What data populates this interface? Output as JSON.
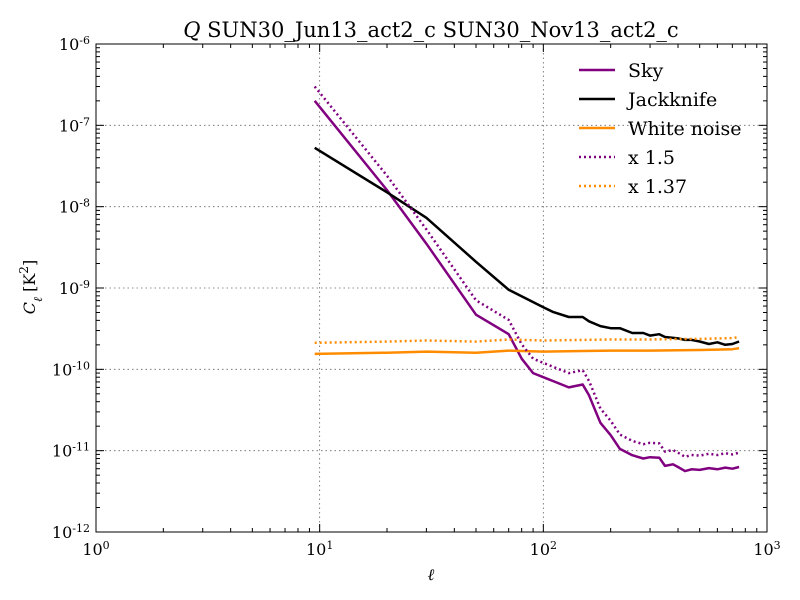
{
  "chart_data": {
    "type": "line",
    "title": "Q SUN30_Jun13_act2_c SUN30_Nov13_act2_c",
    "title_italic_prefix": "Q",
    "title_rest": " SUN30_Jun13_act2_c SUN30_Nov13_act2_c",
    "xlabel": "ℓ",
    "ylabel": "Cℓ [K²]",
    "xscale": "log",
    "yscale": "log",
    "xlim": [
      1,
      1000
    ],
    "ylim": [
      1e-12,
      1e-06
    ],
    "grid": true,
    "legend_position": "top-right",
    "x_ticks": [
      {
        "value": 1,
        "base": "10",
        "exp": "0"
      },
      {
        "value": 10,
        "base": "10",
        "exp": "1"
      },
      {
        "value": 100,
        "base": "10",
        "exp": "2"
      },
      {
        "value": 1000,
        "base": "10",
        "exp": "3"
      }
    ],
    "y_ticks": [
      {
        "value": 1e-12,
        "base": "10",
        "exp": "-12"
      },
      {
        "value": 1e-11,
        "base": "10",
        "exp": "-11"
      },
      {
        "value": 1e-10,
        "base": "10",
        "exp": "-10"
      },
      {
        "value": 1e-09,
        "base": "10",
        "exp": "-9"
      },
      {
        "value": 1e-08,
        "base": "10",
        "exp": "-8"
      },
      {
        "value": 1e-07,
        "base": "10",
        "exp": "-7"
      },
      {
        "value": 1e-06,
        "base": "10",
        "exp": "-6"
      }
    ],
    "series": [
      {
        "name": "Sky",
        "color": "#800080",
        "dash": "solid",
        "x": [
          9.5,
          20,
          30,
          50,
          70,
          80,
          90,
          100,
          110,
          130,
          150,
          160,
          180,
          200,
          220,
          250,
          280,
          300,
          330,
          350,
          380,
          400,
          430,
          460,
          500,
          550,
          600,
          650,
          700,
          750
        ],
        "y": [
          2e-07,
          1.6e-08,
          3.5e-09,
          4.7e-10,
          2.7e-10,
          1.35e-10,
          9e-11,
          8e-11,
          7.2e-11,
          6e-11,
          6.5e-11,
          4.8e-11,
          2.2e-11,
          1.55e-11,
          1.05e-11,
          8.8e-12,
          8e-12,
          8.3e-12,
          8.2e-12,
          6.5e-12,
          6.8e-12,
          6.3e-12,
          5.6e-12,
          5.9e-12,
          5.8e-12,
          6.1e-12,
          5.9e-12,
          6.2e-12,
          6e-12,
          6.3e-12
        ]
      },
      {
        "name": "Jackknife",
        "color": "#000000",
        "dash": "solid",
        "x": [
          9.5,
          20,
          30,
          50,
          70,
          100,
          110,
          130,
          150,
          160,
          180,
          200,
          220,
          250,
          280,
          300,
          330,
          350,
          400,
          430,
          460,
          500,
          550,
          600,
          650,
          700,
          750
        ],
        "y": [
          5.3e-08,
          1.5e-08,
          7.3e-09,
          2.1e-09,
          9.5e-10,
          5.8e-10,
          5.1e-10,
          4.4e-10,
          4.4e-10,
          3.9e-10,
          3.4e-10,
          3.2e-10,
          3.2e-10,
          2.8e-10,
          2.8e-10,
          2.6e-10,
          2.7e-10,
          2.5e-10,
          2.4e-10,
          2.3e-10,
          2.3e-10,
          2.2e-10,
          2.05e-10,
          2.15e-10,
          2e-10,
          2.05e-10,
          2.2e-10
        ]
      },
      {
        "name": "White noise",
        "color": "#ff8c00",
        "dash": "solid",
        "x": [
          9.5,
          20,
          30,
          50,
          70,
          100,
          150,
          200,
          300,
          400,
          500,
          600,
          700,
          750
        ],
        "y": [
          1.55e-10,
          1.6e-10,
          1.65e-10,
          1.6e-10,
          1.7e-10,
          1.65e-10,
          1.68e-10,
          1.7e-10,
          1.7e-10,
          1.72e-10,
          1.73e-10,
          1.75e-10,
          1.77e-10,
          1.82e-10
        ]
      },
      {
        "name": "x 1.5",
        "color": "#800080",
        "dash": "dotted",
        "x": [
          9.5,
          20,
          30,
          50,
          70,
          80,
          90,
          100,
          110,
          130,
          150,
          160,
          180,
          200,
          220,
          250,
          280,
          300,
          330,
          350,
          380,
          400,
          430,
          460,
          500,
          550,
          600,
          650,
          700,
          750
        ],
        "y": [
          3e-07,
          2.4e-08,
          5.25e-09,
          7.05e-10,
          4.05e-10,
          2.03e-10,
          1.35e-10,
          1.2e-10,
          1.08e-10,
          9e-11,
          9.75e-11,
          7.2e-11,
          3.3e-11,
          2.33e-11,
          1.58e-11,
          1.32e-11,
          1.2e-11,
          1.25e-11,
          1.23e-11,
          9.75e-12,
          1.02e-11,
          9.45e-12,
          8.4e-12,
          8.85e-12,
          8.7e-12,
          9.15e-12,
          8.85e-12,
          9.3e-12,
          9e-12,
          9.45e-12
        ]
      },
      {
        "name": "x 1.37",
        "color": "#ff8c00",
        "dash": "dotted",
        "x": [
          9.5,
          20,
          30,
          50,
          70,
          100,
          150,
          200,
          300,
          400,
          500,
          600,
          700,
          750
        ],
        "y": [
          2.12e-10,
          2.19e-10,
          2.26e-10,
          2.19e-10,
          2.33e-10,
          2.26e-10,
          2.3e-10,
          2.33e-10,
          2.33e-10,
          2.36e-10,
          2.37e-10,
          2.4e-10,
          2.42e-10,
          2.49e-10
        ]
      }
    ]
  }
}
